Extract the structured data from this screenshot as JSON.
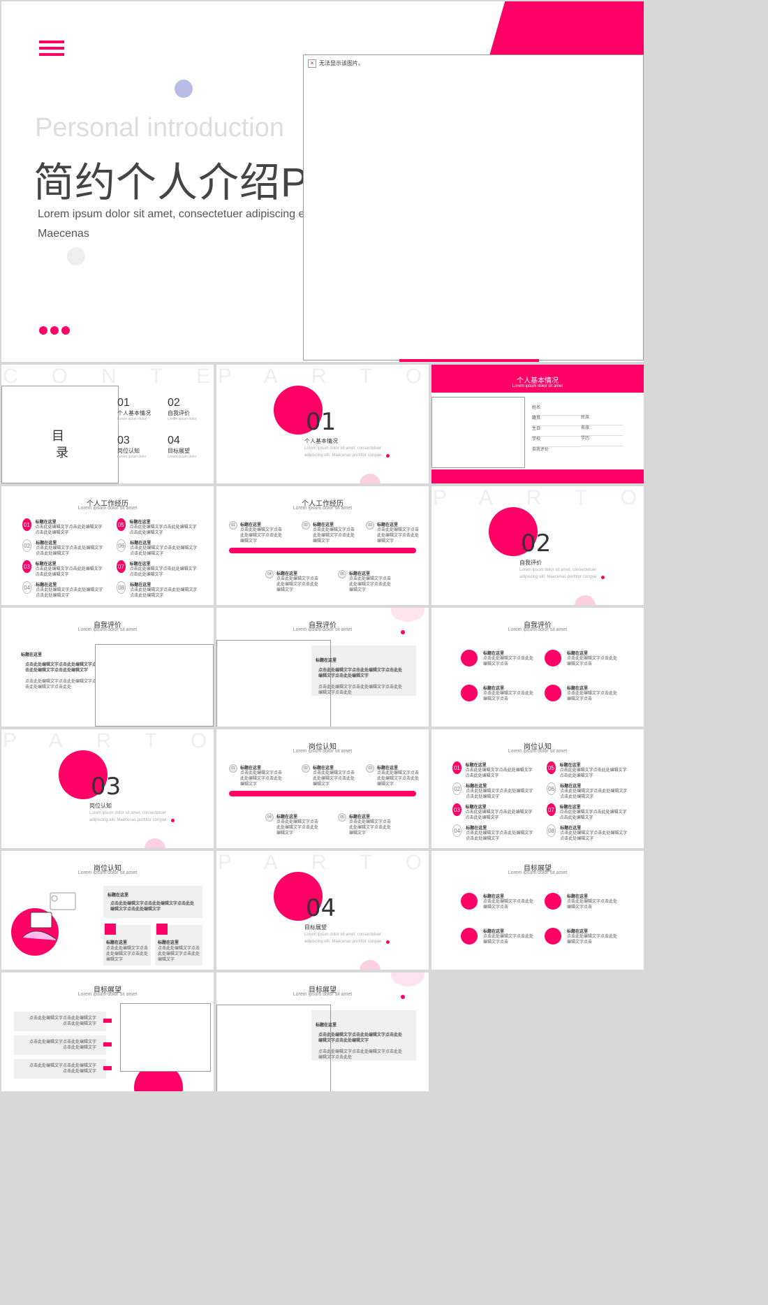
{
  "colors": {
    "accent": "#ff0066",
    "lavender": "#b8bde6",
    "light": "#f0f0f0",
    "gray": "#d8d8d8"
  },
  "hero": {
    "menu_icon": "hamburger-icon",
    "en_title": "Personal introduction",
    "cn_title": "简约个人介绍PPT模板",
    "desc_line1": "Lorem ipsum dolor sit amet, consectetuer adipiscing elit.",
    "desc_line2": "Maecenas",
    "broken_image_text": "无法显示该图片。"
  },
  "contents": {
    "ghost": "CONTENTS",
    "mulu1": "目",
    "mulu2": "录",
    "items": [
      {
        "num": "01",
        "title": "个人基本情况",
        "sub": "Lorem ipsum dolor"
      },
      {
        "num": "02",
        "title": "自我评价",
        "sub": "Lorem ipsum dolor"
      },
      {
        "num": "03",
        "title": "岗位认知",
        "sub": "Lorem ipsum dolor"
      },
      {
        "num": "04",
        "title": "目标展望",
        "sub": "Lorem ipsum dolor"
      }
    ]
  },
  "part_ghost": "PARTONE",
  "sections": [
    {
      "num": "01",
      "title": "个人基本情况",
      "desc1": "Lorem ipsum dolor sit amet, consectetuer",
      "desc2": "adipiscing elit. Maecenas porttitor congue"
    },
    {
      "num": "02",
      "title": "自我评价",
      "desc1": "Lorem ipsum dolor sit amet, consectetuer",
      "desc2": "adipiscing elit. Maecenas porttitor congue"
    },
    {
      "num": "03",
      "title": "岗位认知",
      "desc1": "Lorem ipsum dolor sit amet, consectetuer",
      "desc2": "adipiscing elit. Maecenas porttitor congue"
    },
    {
      "num": "04",
      "title": "目标展望",
      "desc1": "Lorem ipsum dolor sit amet, consectetuer",
      "desc2": "adipiscing elit. Maecenas porttitor congue"
    }
  ],
  "basic_info": {
    "title": "个人基本情况",
    "sub": "Lorem ipsum dolor sit amet",
    "fields_left": [
      "姓名:",
      "籍贯:",
      "生日:",
      "学校:",
      "自我评价:"
    ],
    "fields_right": [
      "民族:",
      "名族:",
      "学历:"
    ]
  },
  "slide_titles": {
    "work": "个人工作经历",
    "self": "自我评价",
    "job": "岗位认知",
    "goal": "目标展望",
    "sub": "Lorem ipsum dolor sit amet"
  },
  "list_item": {
    "head": "标题在这里",
    "body": "点击此处编辑文字点击此处编辑文字点击此处编辑文字"
  },
  "badges": [
    "01",
    "02",
    "03",
    "04",
    "05",
    "06",
    "07",
    "08"
  ],
  "timeline": [
    "01",
    "02",
    "03",
    "04",
    "05"
  ],
  "self_eval": {
    "head": "标题在这里",
    "check1": "点击此处编辑文字点击此处编辑文字点击此处编辑文字点击此处编辑文字",
    "check2": "点击此处编辑文字点击此处编辑文字点击此处编辑文字点击此处"
  },
  "goal_items": {
    "head": "标题在这里",
    "body": "点击此处编辑文字点击此处编辑文字点击"
  }
}
